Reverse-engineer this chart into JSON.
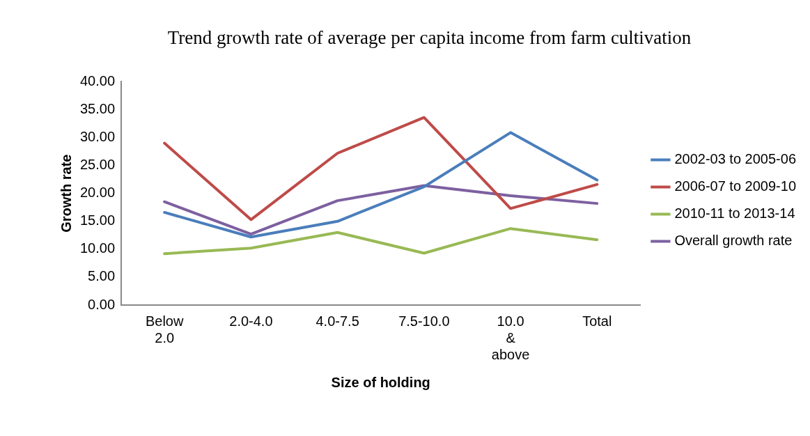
{
  "chart_data": {
    "type": "line",
    "title": "Trend growth rate of average per capita income from farm cultivation",
    "xlabel": "Size of holding",
    "ylabel": "Growth rate",
    "categories": [
      "Below 2.0",
      "2.0-4.0",
      "4.0-7.5",
      "7.5-10.0",
      "10.0 & above",
      "Total"
    ],
    "series": [
      {
        "name": "2002-03 to 2005-06",
        "color": "#4a7ebb",
        "values": [
          16.6,
          12.2,
          15.0,
          21.2,
          30.9,
          22.4
        ]
      },
      {
        "name": "2006-07 to 2009-10",
        "color": "#be4b48",
        "values": [
          29.0,
          15.3,
          27.2,
          33.6,
          17.3,
          21.6
        ]
      },
      {
        "name": "2010-11 to 2013-14",
        "color": "#98b954",
        "values": [
          9.2,
          10.2,
          13.0,
          9.3,
          13.7,
          11.7
        ]
      },
      {
        "name": "Overall growth rate",
        "color": "#7d60a0",
        "values": [
          18.5,
          12.7,
          18.7,
          21.4,
          19.6,
          18.2
        ]
      }
    ],
    "ylim": [
      0,
      40
    ],
    "yticks": [
      {
        "value": 0,
        "label": "0.00"
      },
      {
        "value": 5,
        "label": "5.00"
      },
      {
        "value": 10,
        "label": "10.00"
      },
      {
        "value": 15,
        "label": "15.00"
      },
      {
        "value": 20,
        "label": "20.00"
      },
      {
        "value": 25,
        "label": "25.00"
      },
      {
        "value": 30,
        "label": "30.00"
      },
      {
        "value": 35,
        "label": "35.00"
      },
      {
        "value": 40,
        "label": "40.00"
      }
    ],
    "grid": false,
    "legend": "right",
    "marker": "none",
    "line_style": "solid"
  }
}
